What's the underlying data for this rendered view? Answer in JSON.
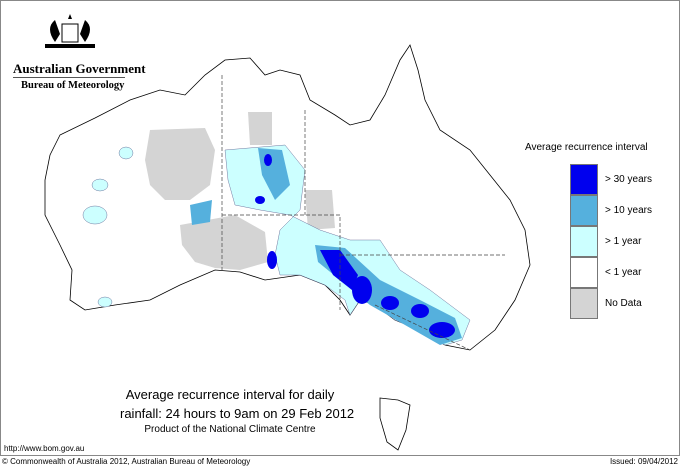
{
  "logo": {
    "line1": "Australian Government",
    "line2": "Bureau of Meteorology"
  },
  "title": {
    "line1": "Average recurrence interval for daily",
    "line2": "rainfall: 24 hours to 9am on 29 Feb 2012",
    "line3": "Product of the National Climate Centre"
  },
  "legend": {
    "title": "Average recurrence interval",
    "items": [
      {
        "label": "> 30 years",
        "color": "#0000ee"
      },
      {
        "label": "> 10 years",
        "color": "#55b0dd"
      },
      {
        "label": "> 1 year",
        "color": "#ccffff"
      },
      {
        "label": "< 1 year",
        "color": "#ffffff"
      },
      {
        "label": "No Data",
        "color": "#d4d4d4"
      }
    ]
  },
  "footer": {
    "url": "http://www.bom.gov.au",
    "copyright": "© Commonwealth of Australia 2012, Australian Bureau of Meteorology",
    "issued": "Issued: 09/04/2012"
  }
}
